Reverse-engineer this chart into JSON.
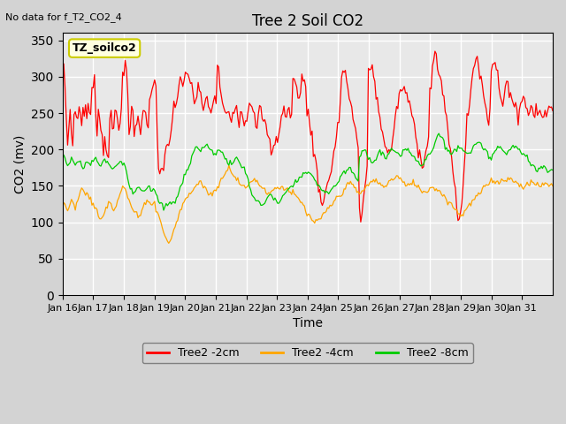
{
  "title": "Tree 2 Soil CO2",
  "subtitle": "No data for f_T2_CO2_4",
  "xlabel": "Time",
  "ylabel": "CO2 (mv)",
  "ylim": [
    0,
    360
  ],
  "yticks": [
    0,
    50,
    100,
    150,
    200,
    250,
    300,
    350
  ],
  "x_labels": [
    "Jan 16",
    "Jan 17",
    "Jan 18",
    "Jan 19",
    "Jan 20",
    "Jan 21",
    "Jan 22",
    "Jan 23",
    "Jan 24",
    "Jan 25",
    "Jan 26",
    "Jan 27",
    "Jan 28",
    "Jan 29",
    "Jan 30",
    "Jan 31"
  ],
  "n_days": 16,
  "points_per_day": 24,
  "legend_label_2cm": "Tree2 -2cm",
  "legend_label_4cm": "Tree2 -4cm",
  "legend_label_8cm": "Tree2 -8cm",
  "color_2cm": "#ff0000",
  "color_4cm": "#ffa500",
  "color_8cm": "#00cc00",
  "background_color": "#d3d3d3",
  "plot_bg_color": "#e8e8e8",
  "grid_color": "#ffffff",
  "annotation_box_color": "#ffffe0",
  "annotation_text": "TZ_soilco2",
  "annotation_border": "#cccc00"
}
